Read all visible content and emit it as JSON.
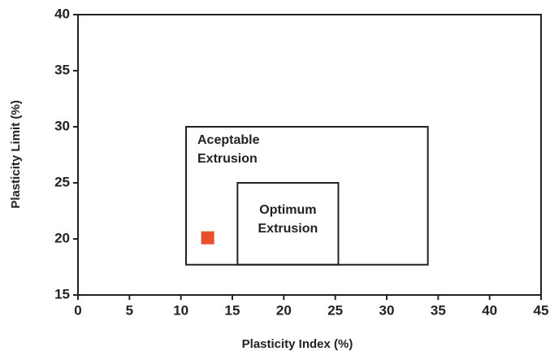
{
  "chart_data": {
    "type": "scatter",
    "x_label": "Plasticity Index (%)",
    "y_label": "Plasticity Limit (%)",
    "xlim": [
      0,
      45
    ],
    "xticks": [
      0,
      5,
      10,
      15,
      20,
      25,
      30,
      35,
      40,
      45
    ],
    "ylim": [
      15,
      40
    ],
    "yticks": [
      15,
      20,
      25,
      30,
      35,
      40
    ],
    "series": [
      {
        "color": "#e8502a",
        "x": [
          12.6
        ],
        "values": [
          20.1
        ]
      }
    ],
    "regions": [
      {
        "label": [
          "Aceptable",
          "Extrusion"
        ],
        "x": [
          10.5,
          34
        ],
        "y": [
          17.7,
          30
        ]
      },
      {
        "label": [
          "Optimum",
          "Extrusion"
        ],
        "x": [
          15.5,
          25.3
        ],
        "y": [
          17.7,
          25
        ]
      }
    ]
  }
}
